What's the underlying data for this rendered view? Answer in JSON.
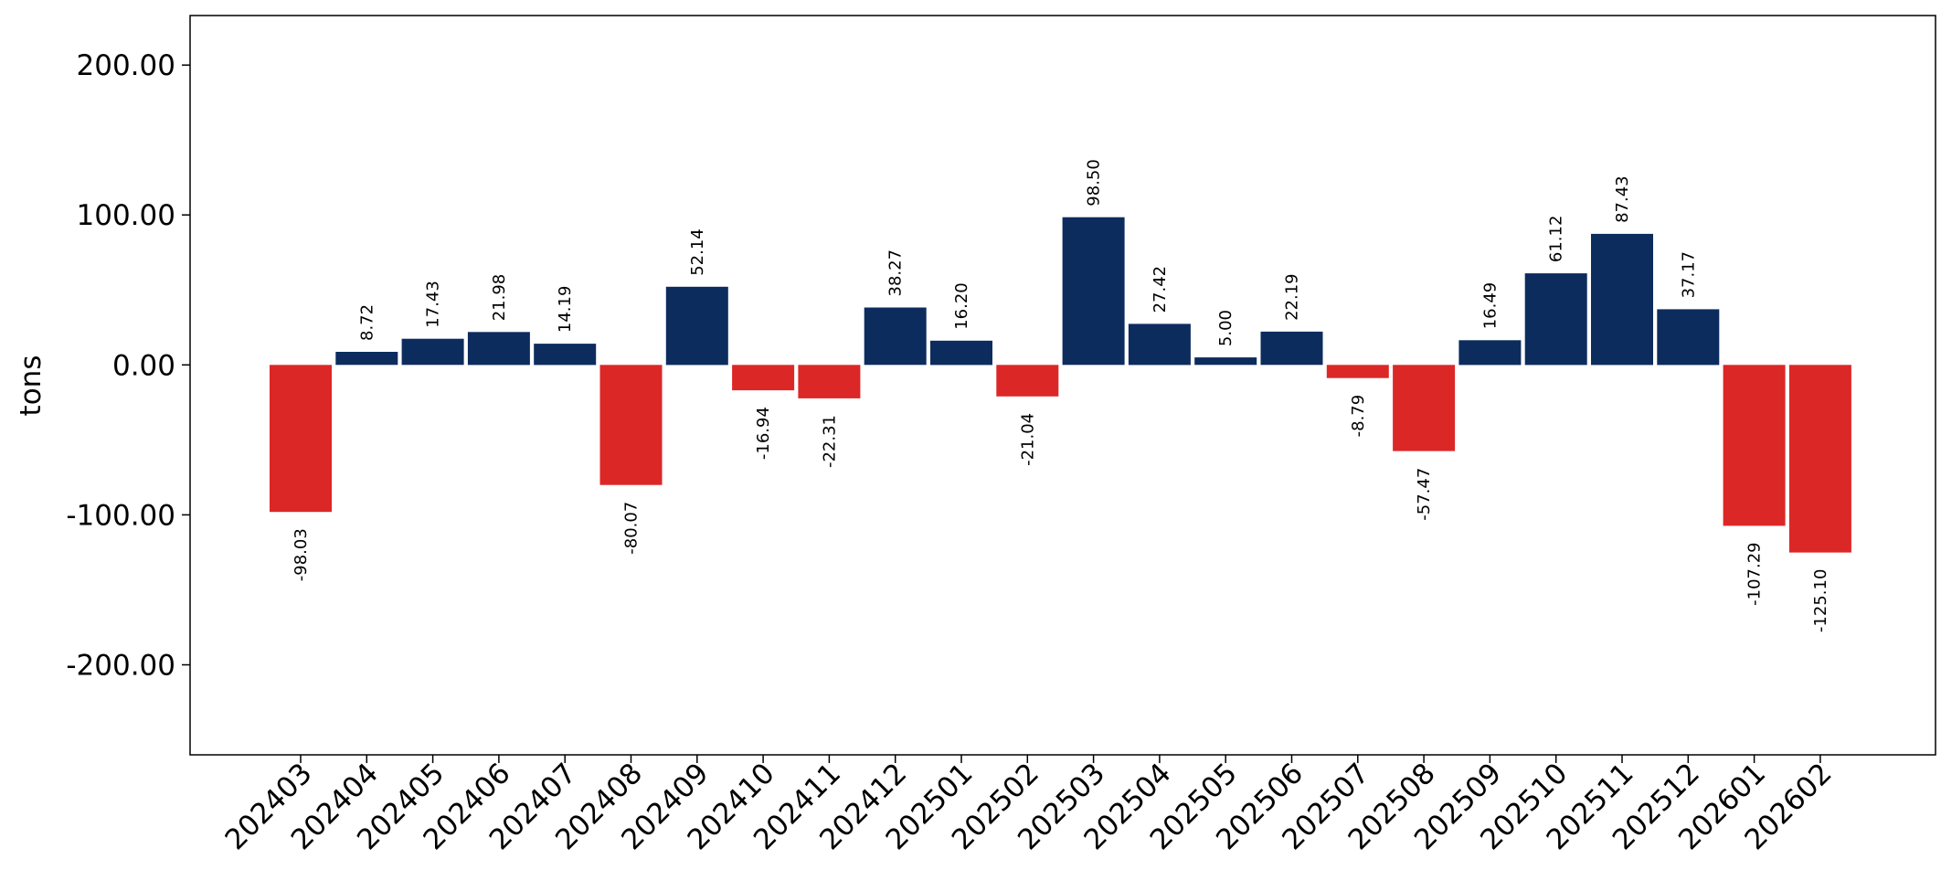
{
  "chart_data": {
    "type": "bar",
    "title": "",
    "xlabel": "",
    "ylabel": "tons",
    "ylim": [
      -260,
      233
    ],
    "y_ticks": [
      200,
      100,
      0,
      -100,
      -200
    ],
    "y_tick_labels": [
      "200.00",
      "100.00",
      "0.00",
      "-100.00",
      "-200.00"
    ],
    "grid": false,
    "legend": "none",
    "colors": {
      "positive": "#0d2c5e",
      "negative": "#dc2727"
    },
    "categories": [
      "202403",
      "202404",
      "202405",
      "202406",
      "202407",
      "202408",
      "202409",
      "202410",
      "202411",
      "202412",
      "202501",
      "202502",
      "202503",
      "202504",
      "202505",
      "202506",
      "202507",
      "202508",
      "202509",
      "202510",
      "202511",
      "202512",
      "202601",
      "202602"
    ],
    "values": [
      -98.03,
      8.72,
      17.43,
      21.98,
      14.19,
      -80.07,
      52.14,
      -16.94,
      -22.31,
      38.27,
      16.2,
      -21.04,
      98.5,
      27.42,
      5.0,
      22.19,
      -8.79,
      -57.47,
      16.49,
      61.12,
      87.43,
      37.17,
      -107.29,
      -125.1
    ],
    "value_labels": [
      "-98.03",
      "8.72",
      "17.43",
      "21.98",
      "14.19",
      "-80.07",
      "52.14",
      "-16.94",
      "-22.31",
      "38.27",
      "16.20",
      "-21.04",
      "98.50",
      "27.42",
      "5.00",
      "22.19",
      "-8.79",
      "-57.47",
      "16.49",
      "61.12",
      "87.43",
      "37.17",
      "-107.29",
      "-125.10"
    ]
  }
}
